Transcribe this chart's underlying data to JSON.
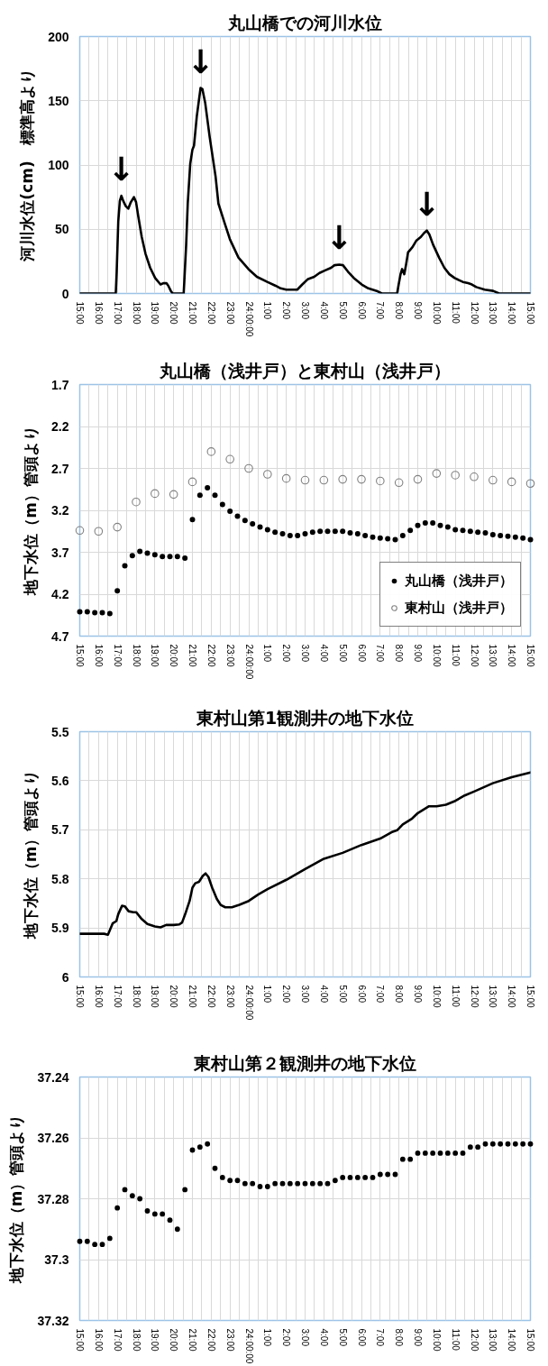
{
  "chart_data": [
    {
      "type": "line",
      "title": "丸山橋での河川水位",
      "ylabel": "河川水位(cm)　標準高より",
      "line_style": "solid",
      "grid": true,
      "xlim": [
        "2000-01-01T15:00",
        "2000-01-02T15:00"
      ],
      "ylim": [
        0,
        200
      ],
      "yticks": [
        0,
        50,
        100,
        150,
        200
      ],
      "xticks": [
        {
          "value": "2000-01-01T15:00",
          "label": "15:00"
        },
        {
          "value": "2000-01-01T15:30",
          "label": null
        },
        {
          "value": "2000-01-01T16:00",
          "label": "16:00"
        },
        {
          "value": "2000-01-01T16:30",
          "label": null
        },
        {
          "value": "2000-01-01T17:00",
          "label": "17:00"
        },
        {
          "value": "2000-01-01T17:30",
          "label": null
        },
        {
          "value": "2000-01-01T18:00",
          "label": "18:00"
        },
        {
          "value": "2000-01-01T18:30",
          "label": null
        },
        {
          "value": "2000-01-01T19:00",
          "label": "19:00"
        },
        {
          "value": "2000-01-01T19:30",
          "label": null
        },
        {
          "value": "2000-01-01T20:00",
          "label": "20:00"
        },
        {
          "value": "2000-01-01T20:30",
          "label": null
        },
        {
          "value": "2000-01-01T21:00",
          "label": "21:00"
        },
        {
          "value": "2000-01-01T21:30",
          "label": null
        },
        {
          "value": "2000-01-01T22:00",
          "label": "22:00"
        },
        {
          "value": "2000-01-01T22:30",
          "label": null
        },
        {
          "value": "2000-01-01T23:00",
          "label": "23:00"
        },
        {
          "value": "2000-01-01T23:30",
          "label": null
        },
        {
          "value": "2000-01-02T00:00",
          "label": "24:00:00"
        },
        {
          "value": "2000-01-02T00:30",
          "label": null
        },
        {
          "value": "2000-01-02T01:00",
          "label": "1:00"
        },
        {
          "value": "2000-01-02T01:30",
          "label": null
        },
        {
          "value": "2000-01-02T02:00",
          "label": "2:00"
        },
        {
          "value": "2000-01-02T02:30",
          "label": null
        },
        {
          "value": "2000-01-02T03:00",
          "label": "3:00"
        },
        {
          "value": "2000-01-02T03:30",
          "label": null
        },
        {
          "value": "2000-01-02T04:00",
          "label": "4:00"
        },
        {
          "value": "2000-01-02T04:30",
          "label": null
        },
        {
          "value": "2000-01-02T05:00",
          "label": "5:00"
        },
        {
          "value": "2000-01-02T05:30",
          "label": null
        },
        {
          "value": "2000-01-02T06:00",
          "label": "6:00"
        },
        {
          "value": "2000-01-02T06:30",
          "label": null
        },
        {
          "value": "2000-01-02T07:00",
          "label": "7:00"
        },
        {
          "value": "2000-01-02T07:30",
          "label": null
        },
        {
          "value": "2000-01-02T08:00",
          "label": "8:00"
        },
        {
          "value": "2000-01-02T08:30",
          "label": null
        },
        {
          "value": "2000-01-02T09:00",
          "label": "9:00"
        },
        {
          "value": "2000-01-02T09:30",
          "label": null
        },
        {
          "value": "2000-01-02T10:00",
          "label": "10:00"
        },
        {
          "value": "2000-01-02T10:30",
          "label": null
        },
        {
          "value": "2000-01-02T11:00",
          "label": "11:00"
        },
        {
          "value": "2000-01-02T11:30",
          "label": null
        },
        {
          "value": "2000-01-02T12:00",
          "label": "12:00"
        },
        {
          "value": "2000-01-02T12:30",
          "label": null
        },
        {
          "value": "2000-01-02T13:00",
          "label": "13:00"
        },
        {
          "value": "2000-01-02T13:30",
          "label": null
        },
        {
          "value": "2000-01-02T14:00",
          "label": "14:00"
        },
        {
          "value": "2000-01-02T14:30",
          "label": null
        },
        {
          "value": "2000-01-02T15:00",
          "label": "15:00"
        }
      ],
      "series": [
        {
          "color": "#000000",
          "x": [
            "2000-01-01T15:00",
            "2000-01-01T16:55",
            "2000-01-01T16:58",
            "2000-01-01T17:03",
            "2000-01-01T17:08",
            "2000-01-01T17:13",
            "2000-01-01T17:19",
            "2000-01-01T17:27",
            "2000-01-01T17:35",
            "2000-01-01T17:43",
            "2000-01-01T17:53",
            "2000-01-01T18:00",
            "2000-01-01T18:07",
            "2000-01-01T18:18",
            "2000-01-01T18:30",
            "2000-01-01T18:45",
            "2000-01-01T19:01",
            "2000-01-01T19:18",
            "2000-01-01T19:27",
            "2000-01-01T19:37",
            "2000-01-01T19:43",
            "2000-01-01T19:51",
            "2000-01-01T19:57",
            "2000-01-01T20:32",
            "2000-01-01T20:34",
            "2000-01-01T20:40",
            "2000-01-01T20:45",
            "2000-01-01T20:53",
            "2000-01-01T21:00",
            "2000-01-01T21:05",
            "2000-01-01T21:14",
            "2000-01-01T21:26",
            "2000-01-01T21:32",
            "2000-01-01T21:41",
            "2000-01-01T21:55",
            "2000-01-01T22:14",
            "2000-01-01T22:23",
            "2000-01-01T22:44",
            "2000-01-01T23:00",
            "2000-01-01T23:27",
            "2000-01-01T23:59",
            "2000-01-02T00:26",
            "2000-01-02T00:59",
            "2000-01-02T01:26",
            "2000-01-02T01:42",
            "2000-01-02T02:00",
            "2000-01-02T02:35",
            "2000-01-02T02:51",
            "2000-01-02T03:08",
            "2000-01-02T03:29",
            "2000-01-02T03:46",
            "2000-01-02T04:04",
            "2000-01-02T04:23",
            "2000-01-02T04:34",
            "2000-01-02T04:49",
            "2000-01-02T05:01",
            "2000-01-02T05:17",
            "2000-01-02T05:36",
            "2000-01-02T06:01",
            "2000-01-02T06:22",
            "2000-01-02T06:49",
            "2000-01-02T07:05",
            "2000-01-02T07:54",
            "2000-01-02T07:59",
            "2000-01-02T08:05",
            "2000-01-02T08:10",
            "2000-01-02T08:17",
            "2000-01-02T08:23",
            "2000-01-02T08:29",
            "2000-01-02T08:43",
            "2000-01-02T08:55",
            "2000-01-02T09:10",
            "2000-01-02T09:20",
            "2000-01-02T09:29",
            "2000-01-02T09:37",
            "2000-01-02T09:49",
            "2000-01-02T10:08",
            "2000-01-02T10:25",
            "2000-01-02T10:41",
            "2000-01-02T10:58",
            "2000-01-02T11:24",
            "2000-01-02T11:41",
            "2000-01-02T11:53",
            "2000-01-02T12:07",
            "2000-01-02T12:34",
            "2000-01-02T13:01",
            "2000-01-02T13:20",
            "2000-01-02T15:00"
          ],
          "values": [
            0,
            0,
            17,
            56,
            72,
            76,
            72,
            68,
            66,
            71,
            75,
            71,
            60,
            44,
            31,
            20,
            12,
            7,
            8,
            8,
            6,
            2,
            0,
            0,
            9,
            38,
            70,
            101,
            112,
            115,
            138,
            160,
            159,
            148,
            122,
            91,
            70,
            54,
            42,
            28,
            19,
            13,
            9,
            6,
            4,
            3,
            3,
            7,
            11,
            13,
            16,
            18,
            20,
            22,
            22.5,
            22,
            17,
            12,
            7,
            4,
            2,
            0,
            0,
            7,
            15,
            19,
            15,
            23,
            32,
            36,
            41,
            44,
            47,
            49,
            46,
            38,
            28,
            20,
            15,
            12,
            9,
            8,
            7,
            5,
            3,
            2,
            0,
            0
          ]
        }
      ],
      "annotations": [
        {
          "text": "↓",
          "x": "2000-01-01T17:13",
          "y": 76
        },
        {
          "text": "↓",
          "x": "2000-01-01T21:26",
          "y": 160
        },
        {
          "text": "↓",
          "x": "2000-01-02T04:49",
          "y": 22.5
        },
        {
          "text": "↓",
          "x": "2000-01-02T09:29",
          "y": 49
        }
      ]
    },
    {
      "type": "scatter",
      "title": "丸山橋（浅井戸）と東村山（浅井戸）",
      "ylabel": "地下水位（m）管頭より",
      "marker": "circle",
      "grid": true,
      "legend": "bottom right",
      "xlim": [
        "2000-01-01T15:00",
        "2000-01-02T15:00"
      ],
      "ylim": [
        4.7,
        1.7
      ],
      "yticks": [
        1.7,
        2.2,
        2.7,
        3.2,
        3.7,
        4.2,
        4.7
      ],
      "xticks": [
        {
          "value": "2000-01-01T15:00",
          "label": "15:00"
        },
        {
          "value": "2000-01-01T15:30",
          "label": null
        },
        {
          "value": "2000-01-01T16:00",
          "label": "16:00"
        },
        {
          "value": "2000-01-01T16:30",
          "label": null
        },
        {
          "value": "2000-01-01T17:00",
          "label": "17:00"
        },
        {
          "value": "2000-01-01T17:30",
          "label": null
        },
        {
          "value": "2000-01-01T18:00",
          "label": "18:00"
        },
        {
          "value": "2000-01-01T18:30",
          "label": null
        },
        {
          "value": "2000-01-01T19:00",
          "label": "19:00"
        },
        {
          "value": "2000-01-01T19:30",
          "label": null
        },
        {
          "value": "2000-01-01T20:00",
          "label": "20:00"
        },
        {
          "value": "2000-01-01T20:30",
          "label": null
        },
        {
          "value": "2000-01-01T21:00",
          "label": "21:00"
        },
        {
          "value": "2000-01-01T21:30",
          "label": null
        },
        {
          "value": "2000-01-01T22:00",
          "label": "22:00"
        },
        {
          "value": "2000-01-01T22:30",
          "label": null
        },
        {
          "value": "2000-01-01T23:00",
          "label": "23:00"
        },
        {
          "value": "2000-01-01T23:30",
          "label": null
        },
        {
          "value": "2000-01-02T00:00",
          "label": "24:00:00"
        },
        {
          "value": "2000-01-02T00:30",
          "label": null
        },
        {
          "value": "2000-01-02T01:00",
          "label": "1:00"
        },
        {
          "value": "2000-01-02T01:30",
          "label": null
        },
        {
          "value": "2000-01-02T02:00",
          "label": "2:00"
        },
        {
          "value": "2000-01-02T02:30",
          "label": null
        },
        {
          "value": "2000-01-02T03:00",
          "label": "3:00"
        },
        {
          "value": "2000-01-02T03:30",
          "label": null
        },
        {
          "value": "2000-01-02T04:00",
          "label": "4:00"
        },
        {
          "value": "2000-01-02T04:30",
          "label": null
        },
        {
          "value": "2000-01-02T05:00",
          "label": "5:00"
        },
        {
          "value": "2000-01-02T05:30",
          "label": null
        },
        {
          "value": "2000-01-02T06:00",
          "label": "6:00"
        },
        {
          "value": "2000-01-02T06:30",
          "label": null
        },
        {
          "value": "2000-01-02T07:00",
          "label": "7:00"
        },
        {
          "value": "2000-01-02T07:30",
          "label": null
        },
        {
          "value": "2000-01-02T08:00",
          "label": "8:00"
        },
        {
          "value": "2000-01-02T08:30",
          "label": null
        },
        {
          "value": "2000-01-02T09:00",
          "label": "9:00"
        },
        {
          "value": "2000-01-02T09:30",
          "label": null
        },
        {
          "value": "2000-01-02T10:00",
          "label": "10:00"
        },
        {
          "value": "2000-01-02T10:30",
          "label": null
        },
        {
          "value": "2000-01-02T11:00",
          "label": "11:00"
        },
        {
          "value": "2000-01-02T11:30",
          "label": null
        },
        {
          "value": "2000-01-02T12:00",
          "label": "12:00"
        },
        {
          "value": "2000-01-02T12:30",
          "label": null
        },
        {
          "value": "2000-01-02T13:00",
          "label": "13:00"
        },
        {
          "value": "2000-01-02T13:30",
          "label": null
        },
        {
          "value": "2000-01-02T14:00",
          "label": "14:00"
        },
        {
          "value": "2000-01-02T14:30",
          "label": null
        },
        {
          "value": "2000-01-02T15:00",
          "label": "15:00"
        }
      ],
      "series": [
        {
          "name": "丸山橋（浅井戸）",
          "color": "#000000",
          "x": [
            "2000-01-01T15:00",
            "2000-01-01T15:24",
            "2000-01-01T15:48",
            "2000-01-01T16:12",
            "2000-01-01T16:36",
            "2000-01-01T17:00",
            "2000-01-01T17:24",
            "2000-01-01T17:48",
            "2000-01-01T18:12",
            "2000-01-01T18:36",
            "2000-01-01T19:00",
            "2000-01-01T19:24",
            "2000-01-01T19:48",
            "2000-01-01T20:12",
            "2000-01-01T20:36",
            "2000-01-01T21:00",
            "2000-01-01T21:24",
            "2000-01-01T21:48",
            "2000-01-01T22:12",
            "2000-01-01T22:36",
            "2000-01-01T23:00",
            "2000-01-01T23:24",
            "2000-01-01T23:48",
            "2000-01-02T00:12",
            "2000-01-02T00:36",
            "2000-01-02T01:00",
            "2000-01-02T01:24",
            "2000-01-02T01:48",
            "2000-01-02T02:12",
            "2000-01-02T02:36",
            "2000-01-02T03:00",
            "2000-01-02T03:24",
            "2000-01-02T03:48",
            "2000-01-02T04:12",
            "2000-01-02T04:36",
            "2000-01-02T05:00",
            "2000-01-02T05:24",
            "2000-01-02T05:48",
            "2000-01-02T06:12",
            "2000-01-02T06:36",
            "2000-01-02T07:00",
            "2000-01-02T07:24",
            "2000-01-02T07:48",
            "2000-01-02T08:12",
            "2000-01-02T08:36",
            "2000-01-02T09:00",
            "2000-01-02T09:24",
            "2000-01-02T09:48",
            "2000-01-02T10:12",
            "2000-01-02T10:36",
            "2000-01-02T11:00",
            "2000-01-02T11:24",
            "2000-01-02T11:48",
            "2000-01-02T12:12",
            "2000-01-02T12:36",
            "2000-01-02T13:00",
            "2000-01-02T13:24",
            "2000-01-02T13:48",
            "2000-01-02T14:12",
            "2000-01-02T14:36",
            "2000-01-02T15:00"
          ],
          "values": [
            4.41,
            4.41,
            4.42,
            4.42,
            4.43,
            4.16,
            3.86,
            3.74,
            3.69,
            3.71,
            3.73,
            3.75,
            3.75,
            3.75,
            3.77,
            3.31,
            3.02,
            2.93,
            3.02,
            3.13,
            3.21,
            3.27,
            3.32,
            3.36,
            3.4,
            3.43,
            3.46,
            3.48,
            3.5,
            3.5,
            3.48,
            3.46,
            3.45,
            3.45,
            3.45,
            3.45,
            3.47,
            3.48,
            3.5,
            3.52,
            3.53,
            3.54,
            3.55,
            3.5,
            3.44,
            3.38,
            3.35,
            3.35,
            3.38,
            3.4,
            3.43,
            3.44,
            3.45,
            3.46,
            3.47,
            3.49,
            3.5,
            3.51,
            3.52,
            3.53,
            3.55
          ]
        },
        {
          "name": "東村山（浅井戸）",
          "color": "#808080",
          "x": [
            "2000-01-01T15:00",
            "2000-01-01T16:00",
            "2000-01-01T17:00",
            "2000-01-01T18:00",
            "2000-01-01T19:00",
            "2000-01-01T20:00",
            "2000-01-01T21:00",
            "2000-01-01T22:00",
            "2000-01-01T23:00",
            "2000-01-02T00:00",
            "2000-01-02T01:00",
            "2000-01-02T02:00",
            "2000-01-02T03:00",
            "2000-01-02T04:00",
            "2000-01-02T05:00",
            "2000-01-02T06:00",
            "2000-01-02T07:00",
            "2000-01-02T08:00",
            "2000-01-02T09:00",
            "2000-01-02T10:00",
            "2000-01-02T11:00",
            "2000-01-02T12:00",
            "2000-01-02T13:00",
            "2000-01-02T14:00",
            "2000-01-02T15:00"
          ],
          "values": [
            3.44,
            3.45,
            3.4,
            3.1,
            3.0,
            3.01,
            2.86,
            2.5,
            2.59,
            2.7,
            2.77,
            2.82,
            2.84,
            2.84,
            2.83,
            2.83,
            2.85,
            2.87,
            2.83,
            2.76,
            2.78,
            2.8,
            2.84,
            2.86,
            2.88
          ]
        }
      ]
    },
    {
      "type": "line",
      "title": "東村山第1観測井の地下水位",
      "ylabel": "地下水位（m）管頭より",
      "line_style": "solid",
      "grid": true,
      "xlim": [
        "2000-01-01T15:00",
        "2000-01-02T15:00"
      ],
      "ylim": [
        6,
        5.5
      ],
      "yticks": [
        5.5,
        5.6,
        5.7,
        5.8,
        5.9,
        6
      ],
      "xticks": [
        {
          "value": "2000-01-01T15:00",
          "label": "15:00"
        },
        {
          "value": "2000-01-01T15:30",
          "label": null
        },
        {
          "value": "2000-01-01T16:00",
          "label": "16:00"
        },
        {
          "value": "2000-01-01T16:30",
          "label": null
        },
        {
          "value": "2000-01-01T17:00",
          "label": "17:00"
        },
        {
          "value": "2000-01-01T17:30",
          "label": null
        },
        {
          "value": "2000-01-01T18:00",
          "label": "18:00"
        },
        {
          "value": "2000-01-01T18:30",
          "label": null
        },
        {
          "value": "2000-01-01T19:00",
          "label": "19:00"
        },
        {
          "value": "2000-01-01T19:30",
          "label": null
        },
        {
          "value": "2000-01-01T20:00",
          "label": "20:00"
        },
        {
          "value": "2000-01-01T20:30",
          "label": null
        },
        {
          "value": "2000-01-01T21:00",
          "label": "21:00"
        },
        {
          "value": "2000-01-01T21:30",
          "label": null
        },
        {
          "value": "2000-01-01T22:00",
          "label": "22:00"
        },
        {
          "value": "2000-01-01T22:30",
          "label": null
        },
        {
          "value": "2000-01-01T23:00",
          "label": "23:00"
        },
        {
          "value": "2000-01-01T23:30",
          "label": null
        },
        {
          "value": "2000-01-02T00:00",
          "label": "24:00:00"
        },
        {
          "value": "2000-01-02T00:30",
          "label": null
        },
        {
          "value": "2000-01-02T01:00",
          "label": "1:00"
        },
        {
          "value": "2000-01-02T01:30",
          "label": null
        },
        {
          "value": "2000-01-02T02:00",
          "label": "2:00"
        },
        {
          "value": "2000-01-02T02:30",
          "label": null
        },
        {
          "value": "2000-01-02T03:00",
          "label": "3:00"
        },
        {
          "value": "2000-01-02T03:30",
          "label": null
        },
        {
          "value": "2000-01-02T04:00",
          "label": "4:00"
        },
        {
          "value": "2000-01-02T04:30",
          "label": null
        },
        {
          "value": "2000-01-02T05:00",
          "label": "5:00"
        },
        {
          "value": "2000-01-02T05:30",
          "label": null
        },
        {
          "value": "2000-01-02T06:00",
          "label": "6:00"
        },
        {
          "value": "2000-01-02T06:30",
          "label": null
        },
        {
          "value": "2000-01-02T07:00",
          "label": "7:00"
        },
        {
          "value": "2000-01-02T07:30",
          "label": null
        },
        {
          "value": "2000-01-02T08:00",
          "label": "8:00"
        },
        {
          "value": "2000-01-02T08:30",
          "label": null
        },
        {
          "value": "2000-01-02T09:00",
          "label": "9:00"
        },
        {
          "value": "2000-01-02T09:30",
          "label": null
        },
        {
          "value": "2000-01-02T10:00",
          "label": "10:00"
        },
        {
          "value": "2000-01-02T10:30",
          "label": null
        },
        {
          "value": "2000-01-02T11:00",
          "label": "11:00"
        },
        {
          "value": "2000-01-02T11:30",
          "label": null
        },
        {
          "value": "2000-01-02T12:00",
          "label": "12:00"
        },
        {
          "value": "2000-01-02T12:30",
          "label": null
        },
        {
          "value": "2000-01-02T13:00",
          "label": "13:00"
        },
        {
          "value": "2000-01-02T13:30",
          "label": null
        },
        {
          "value": "2000-01-02T14:00",
          "label": "14:00"
        },
        {
          "value": "2000-01-02T14:30",
          "label": null
        },
        {
          "value": "2000-01-02T15:00",
          "label": "15:00"
        }
      ],
      "series": [
        {
          "color": "#000000",
          "x": [
            "2000-01-01T15:00",
            "2000-01-01T16:18",
            "2000-01-01T16:30",
            "2000-01-01T16:36",
            "2000-01-01T16:45",
            "2000-01-01T16:57",
            "2000-01-01T17:03",
            "2000-01-01T17:15",
            "2000-01-01T17:24",
            "2000-01-01T17:36",
            "2000-01-01T17:51",
            "2000-01-01T18:00",
            "2000-01-01T18:18",
            "2000-01-01T18:36",
            "2000-01-01T19:00",
            "2000-01-01T19:18",
            "2000-01-01T19:36",
            "2000-01-01T20:00",
            "2000-01-01T20:18",
            "2000-01-01T20:27",
            "2000-01-01T20:39",
            "2000-01-01T20:51",
            "2000-01-01T21:00",
            "2000-01-01T21:09",
            "2000-01-01T21:21",
            "2000-01-01T21:33",
            "2000-01-01T21:42",
            "2000-01-01T21:51",
            "2000-01-01T22:03",
            "2000-01-01T22:18",
            "2000-01-01T22:30",
            "2000-01-01T22:45",
            "2000-01-01T23:06",
            "2000-01-01T23:30",
            "2000-01-02T00:00",
            "2000-01-02T00:30",
            "2000-01-02T01:00",
            "2000-01-02T02:00",
            "2000-01-02T03:00",
            "2000-01-02T04:00",
            "2000-01-02T05:00",
            "2000-01-02T06:00",
            "2000-01-02T07:00",
            "2000-01-02T07:36",
            "2000-01-02T07:54",
            "2000-01-02T08:12",
            "2000-01-02T08:42",
            "2000-01-02T09:00",
            "2000-01-02T09:36",
            "2000-01-02T10:00",
            "2000-01-02T10:30",
            "2000-01-02T11:00",
            "2000-01-02T11:30",
            "2000-01-02T12:00",
            "2000-01-02T13:00",
            "2000-01-02T14:00",
            "2000-01-02T15:00"
          ],
          "values": [
            5.912,
            5.912,
            5.914,
            5.905,
            5.891,
            5.886,
            5.872,
            5.855,
            5.856,
            5.866,
            5.868,
            5.868,
            5.882,
            5.892,
            5.897,
            5.899,
            5.894,
            5.894,
            5.893,
            5.889,
            5.868,
            5.845,
            5.818,
            5.809,
            5.806,
            5.794,
            5.789,
            5.796,
            5.818,
            5.841,
            5.853,
            5.858,
            5.858,
            5.853,
            5.845,
            5.832,
            5.821,
            5.802,
            5.78,
            5.759,
            5.747,
            5.731,
            5.718,
            5.705,
            5.701,
            5.689,
            5.677,
            5.666,
            5.652,
            5.652,
            5.649,
            5.641,
            5.63,
            5.622,
            5.605,
            5.593,
            5.583
          ]
        }
      ]
    },
    {
      "type": "scatter",
      "title": "東村山第２観測井の地下水位",
      "ylabel": "地下水位（m）管頭より",
      "marker": "circle",
      "grid": true,
      "xlim": [
        "2000-01-01T15:00",
        "2000-01-02T15:00"
      ],
      "ylim": [
        37.32,
        37.24
      ],
      "yticks": [
        37.24,
        37.26,
        37.28,
        37.3,
        37.32
      ],
      "xticks": [
        {
          "value": "2000-01-01T15:00",
          "label": "15:00"
        },
        {
          "value": "2000-01-01T15:30",
          "label": null
        },
        {
          "value": "2000-01-01T16:00",
          "label": "16:00"
        },
        {
          "value": "2000-01-01T16:30",
          "label": null
        },
        {
          "value": "2000-01-01T17:00",
          "label": "17:00"
        },
        {
          "value": "2000-01-01T17:30",
          "label": null
        },
        {
          "value": "2000-01-01T18:00",
          "label": "18:00"
        },
        {
          "value": "2000-01-01T18:30",
          "label": null
        },
        {
          "value": "2000-01-01T19:00",
          "label": "19:00"
        },
        {
          "value": "2000-01-01T19:30",
          "label": null
        },
        {
          "value": "2000-01-01T20:00",
          "label": "20:00"
        },
        {
          "value": "2000-01-01T20:30",
          "label": null
        },
        {
          "value": "2000-01-01T21:00",
          "label": "21:00"
        },
        {
          "value": "2000-01-01T21:30",
          "label": null
        },
        {
          "value": "2000-01-01T22:00",
          "label": "22:00"
        },
        {
          "value": "2000-01-01T22:30",
          "label": null
        },
        {
          "value": "2000-01-01T23:00",
          "label": "23:00"
        },
        {
          "value": "2000-01-01T23:30",
          "label": null
        },
        {
          "value": "2000-01-02T00:00",
          "label": "24:00:00"
        },
        {
          "value": "2000-01-02T00:30",
          "label": null
        },
        {
          "value": "2000-01-02T01:00",
          "label": "1:00"
        },
        {
          "value": "2000-01-02T01:30",
          "label": null
        },
        {
          "value": "2000-01-02T02:00",
          "label": "2:00"
        },
        {
          "value": "2000-01-02T02:30",
          "label": null
        },
        {
          "value": "2000-01-02T03:00",
          "label": "3:00"
        },
        {
          "value": "2000-01-02T03:30",
          "label": null
        },
        {
          "value": "2000-01-02T04:00",
          "label": "4:00"
        },
        {
          "value": "2000-01-02T04:30",
          "label": null
        },
        {
          "value": "2000-01-02T05:00",
          "label": "5:00"
        },
        {
          "value": "2000-01-02T05:30",
          "label": null
        },
        {
          "value": "2000-01-02T06:00",
          "label": "6:00"
        },
        {
          "value": "2000-01-02T06:30",
          "label": null
        },
        {
          "value": "2000-01-02T07:00",
          "label": "7:00"
        },
        {
          "value": "2000-01-02T07:30",
          "label": null
        },
        {
          "value": "2000-01-02T08:00",
          "label": "8:00"
        },
        {
          "value": "2000-01-02T08:30",
          "label": null
        },
        {
          "value": "2000-01-02T09:00",
          "label": "9:00"
        },
        {
          "value": "2000-01-02T09:30",
          "label": null
        },
        {
          "value": "2000-01-02T10:00",
          "label": "10:00"
        },
        {
          "value": "2000-01-02T10:30",
          "label": null
        },
        {
          "value": "2000-01-02T11:00",
          "label": "11:00"
        },
        {
          "value": "2000-01-02T11:30",
          "label": null
        },
        {
          "value": "2000-01-02T12:00",
          "label": "12:00"
        },
        {
          "value": "2000-01-02T12:30",
          "label": null
        },
        {
          "value": "2000-01-02T13:00",
          "label": "13:00"
        },
        {
          "value": "2000-01-02T13:30",
          "label": null
        },
        {
          "value": "2000-01-02T14:00",
          "label": "14:00"
        },
        {
          "value": "2000-01-02T14:30",
          "label": null
        },
        {
          "value": "2000-01-02T15:00",
          "label": "15:00"
        }
      ],
      "series": [
        {
          "color": "#000000",
          "x": [
            "2000-01-01T15:00",
            "2000-01-01T15:24",
            "2000-01-01T15:48",
            "2000-01-01T16:12",
            "2000-01-01T16:36",
            "2000-01-01T17:00",
            "2000-01-01T17:24",
            "2000-01-01T17:48",
            "2000-01-01T18:12",
            "2000-01-01T18:36",
            "2000-01-01T19:00",
            "2000-01-01T19:24",
            "2000-01-01T19:48",
            "2000-01-01T20:12",
            "2000-01-01T20:36",
            "2000-01-01T21:00",
            "2000-01-01T21:24",
            "2000-01-01T21:48",
            "2000-01-01T22:12",
            "2000-01-01T22:36",
            "2000-01-01T23:00",
            "2000-01-01T23:24",
            "2000-01-01T23:48",
            "2000-01-02T00:12",
            "2000-01-02T00:36",
            "2000-01-02T01:00",
            "2000-01-02T01:24",
            "2000-01-02T01:48",
            "2000-01-02T02:12",
            "2000-01-02T02:36",
            "2000-01-02T03:00",
            "2000-01-02T03:24",
            "2000-01-02T03:48",
            "2000-01-02T04:12",
            "2000-01-02T04:36",
            "2000-01-02T05:00",
            "2000-01-02T05:24",
            "2000-01-02T05:48",
            "2000-01-02T06:12",
            "2000-01-02T06:36",
            "2000-01-02T07:00",
            "2000-01-02T07:24",
            "2000-01-02T07:48",
            "2000-01-02T08:12",
            "2000-01-02T08:36",
            "2000-01-02T09:00",
            "2000-01-02T09:24",
            "2000-01-02T09:48",
            "2000-01-02T10:12",
            "2000-01-02T10:36",
            "2000-01-02T11:00",
            "2000-01-02T11:24",
            "2000-01-02T11:48",
            "2000-01-02T12:12",
            "2000-01-02T12:36",
            "2000-01-02T13:00",
            "2000-01-02T13:24",
            "2000-01-02T13:48",
            "2000-01-02T14:12",
            "2000-01-02T14:36",
            "2000-01-02T15:00"
          ],
          "values": [
            37.294,
            37.294,
            37.295,
            37.295,
            37.293,
            37.283,
            37.277,
            37.279,
            37.28,
            37.284,
            37.285,
            37.285,
            37.287,
            37.29,
            37.277,
            37.264,
            37.263,
            37.262,
            37.27,
            37.273,
            37.274,
            37.274,
            37.275,
            37.275,
            37.276,
            37.276,
            37.275,
            37.275,
            37.275,
            37.275,
            37.275,
            37.275,
            37.275,
            37.275,
            37.274,
            37.273,
            37.273,
            37.273,
            37.273,
            37.273,
            37.272,
            37.272,
            37.272,
            37.267,
            37.267,
            37.265,
            37.265,
            37.265,
            37.265,
            37.265,
            37.265,
            37.265,
            37.263,
            37.263,
            37.262,
            37.262,
            37.262,
            37.262,
            37.262,
            37.262,
            37.262
          ]
        }
      ]
    }
  ]
}
